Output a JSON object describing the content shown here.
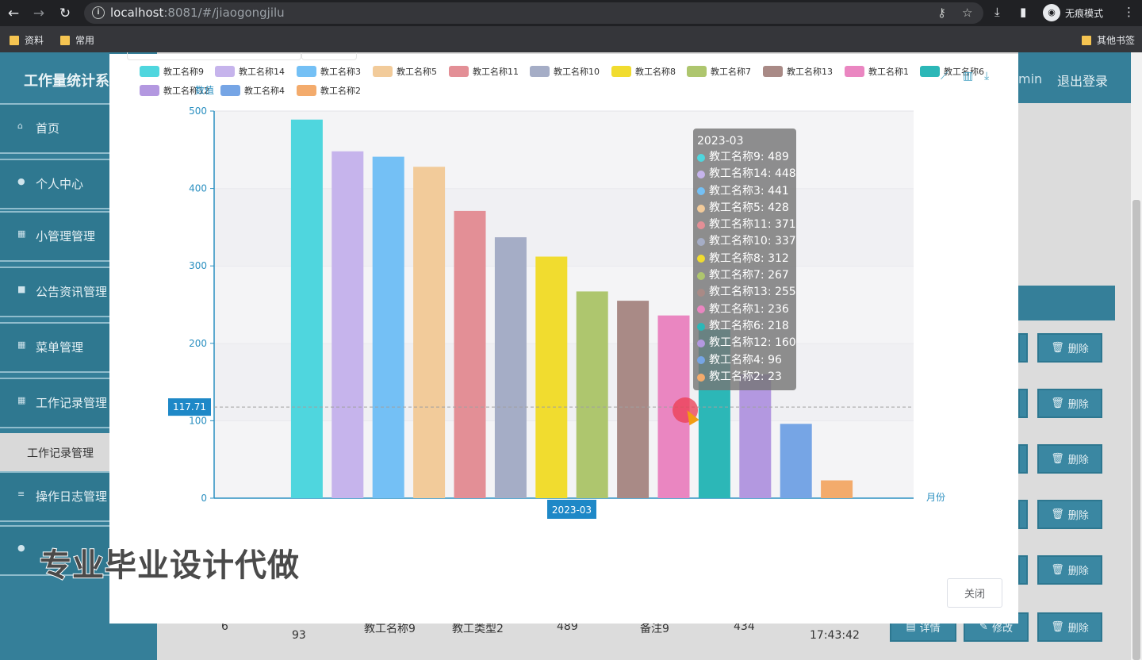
{
  "browser": {
    "url_host": "localhost",
    "url_rest": ":8081/#/jiaogongjilu",
    "incognito_label": "无痕模式",
    "bookmarks": [
      "资料",
      "常用"
    ],
    "other_bookmarks": "其他书签"
  },
  "app": {
    "title": "工作量统计系",
    "top_right": {
      "admin_fragment": "min",
      "logout": "退出登录"
    },
    "sidebar": [
      {
        "label": "首页",
        "icon": "home-icon"
      },
      {
        "label": "个人中心",
        "icon": "user-icon"
      },
      {
        "label": "小管理管理",
        "icon": "grid-icon"
      },
      {
        "label": "公告资讯管理",
        "icon": "chat-icon"
      },
      {
        "label": "菜单管理",
        "icon": "grid-icon"
      },
      {
        "label": "工作记录管理",
        "icon": "grid-icon"
      },
      {
        "label": "操作日志管理",
        "icon": "stack-icon"
      }
    ],
    "sidebar_sub": "工作记录管理",
    "row_buttons": {
      "delete": "删除",
      "detail": "详情",
      "edit": "修改"
    },
    "bottom_row": {
      "index": "6",
      "col_a": "93",
      "name": "教工名称9",
      "type": "教工类型2",
      "value": "489",
      "remark": "备注9",
      "num": "434",
      "time": "17:43:42"
    }
  },
  "modal": {
    "close_label": "关闭"
  },
  "chart_data": {
    "type": "bar",
    "categories": [
      "2023-03"
    ],
    "ylabel": "数值",
    "xlabel": "月份",
    "ylim": [
      0,
      500
    ],
    "yticks": [
      "0",
      "100",
      "200",
      "300",
      "400",
      "500"
    ],
    "pointer_value": "117.71",
    "series": [
      {
        "name": "教工名称9",
        "values": [
          489
        ],
        "color": "#4fd6de"
      },
      {
        "name": "教工名称14",
        "values": [
          448
        ],
        "color": "#c6b4ec"
      },
      {
        "name": "教工名称3",
        "values": [
          441
        ],
        "color": "#74c0f5"
      },
      {
        "name": "教工名称5",
        "values": [
          428
        ],
        "color": "#f2cb9a"
      },
      {
        "name": "教工名称11",
        "values": [
          371
        ],
        "color": "#e38f96"
      },
      {
        "name": "教工名称10",
        "values": [
          337
        ],
        "color": "#a5adc6"
      },
      {
        "name": "教工名称8",
        "values": [
          312
        ],
        "color": "#f1dc2f"
      },
      {
        "name": "教工名称7",
        "values": [
          267
        ],
        "color": "#aec66e"
      },
      {
        "name": "教工名称13",
        "values": [
          255
        ],
        "color": "#a98a86"
      },
      {
        "name": "教工名称1",
        "values": [
          236
        ],
        "color": "#ea86c1"
      },
      {
        "name": "教工名称6",
        "values": [
          218
        ],
        "color": "#2cb7b7"
      },
      {
        "name": "教工名称12",
        "values": [
          160
        ],
        "color": "#b398e0"
      },
      {
        "name": "教工名称4",
        "values": [
          96
        ],
        "color": "#76a5e5"
      },
      {
        "name": "教工名称2",
        "values": [
          23
        ],
        "color": "#f3ab6c"
      }
    ],
    "legend_order": [
      "教工名称9",
      "教工名称14",
      "教工名称3",
      "教工名称5",
      "教工名称11",
      "教工名称10",
      "教工名称8",
      "教工名称7",
      "教工名称13",
      "教工名称1",
      "教工名称6",
      "教工名称12",
      "教工名称4",
      "教工名称2"
    ],
    "tooltip": {
      "title": "2023-03",
      "rows": [
        "教工名称9: 489",
        "教工名称14: 448",
        "教工名称3: 441",
        "教工名称5: 428",
        "教工名称11: 371",
        "教工名称10: 337",
        "教工名称8: 312",
        "教工名称7: 267",
        "教工名称13: 255",
        "教工名称1: 236",
        "教工名称6: 218",
        "教工名称12: 160",
        "教工名称4: 96",
        "教工名称2: 23"
      ]
    }
  },
  "watermark": "专业毕业设计代做"
}
